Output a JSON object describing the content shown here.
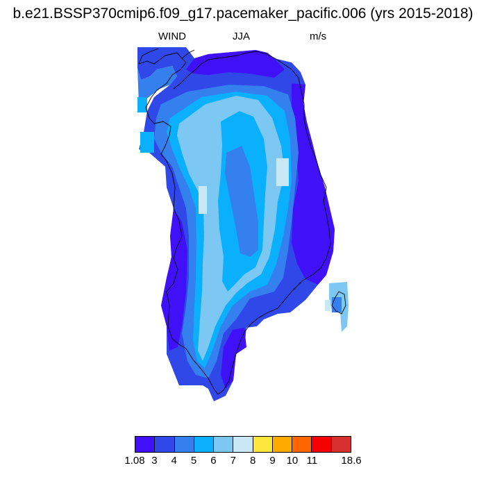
{
  "title": "b.e21.BSSP370cmip6.f09_g17.pacemaker_pacific.006 (yrs 2015-2018)",
  "subtitle": {
    "left": "WIND",
    "center": "JJA",
    "right": "m/s"
  },
  "colors": {
    "c1": "#4010f8",
    "c2": "#3048e8",
    "c3": "#3480ee",
    "c4": "#0ab0fc",
    "c5": "#7cc8f2",
    "c6": "#c8e8f6",
    "c7": "#ffe63c",
    "c8": "#ffaa00",
    "c9": "#ff6600",
    "c10": "#f40000",
    "c11": "#d83030"
  },
  "legend": {
    "colors": [
      "#4010f8",
      "#3048e8",
      "#3480ee",
      "#0ab0fc",
      "#7cc8f2",
      "#c8e8f6",
      "#ffe63c",
      "#ffaa00",
      "#ff6600",
      "#f40000",
      "#d83030"
    ],
    "labels": [
      "1.08",
      "3",
      "4",
      "5",
      "6",
      "7",
      "8",
      "9",
      "10",
      "11",
      "18.6"
    ]
  }
}
